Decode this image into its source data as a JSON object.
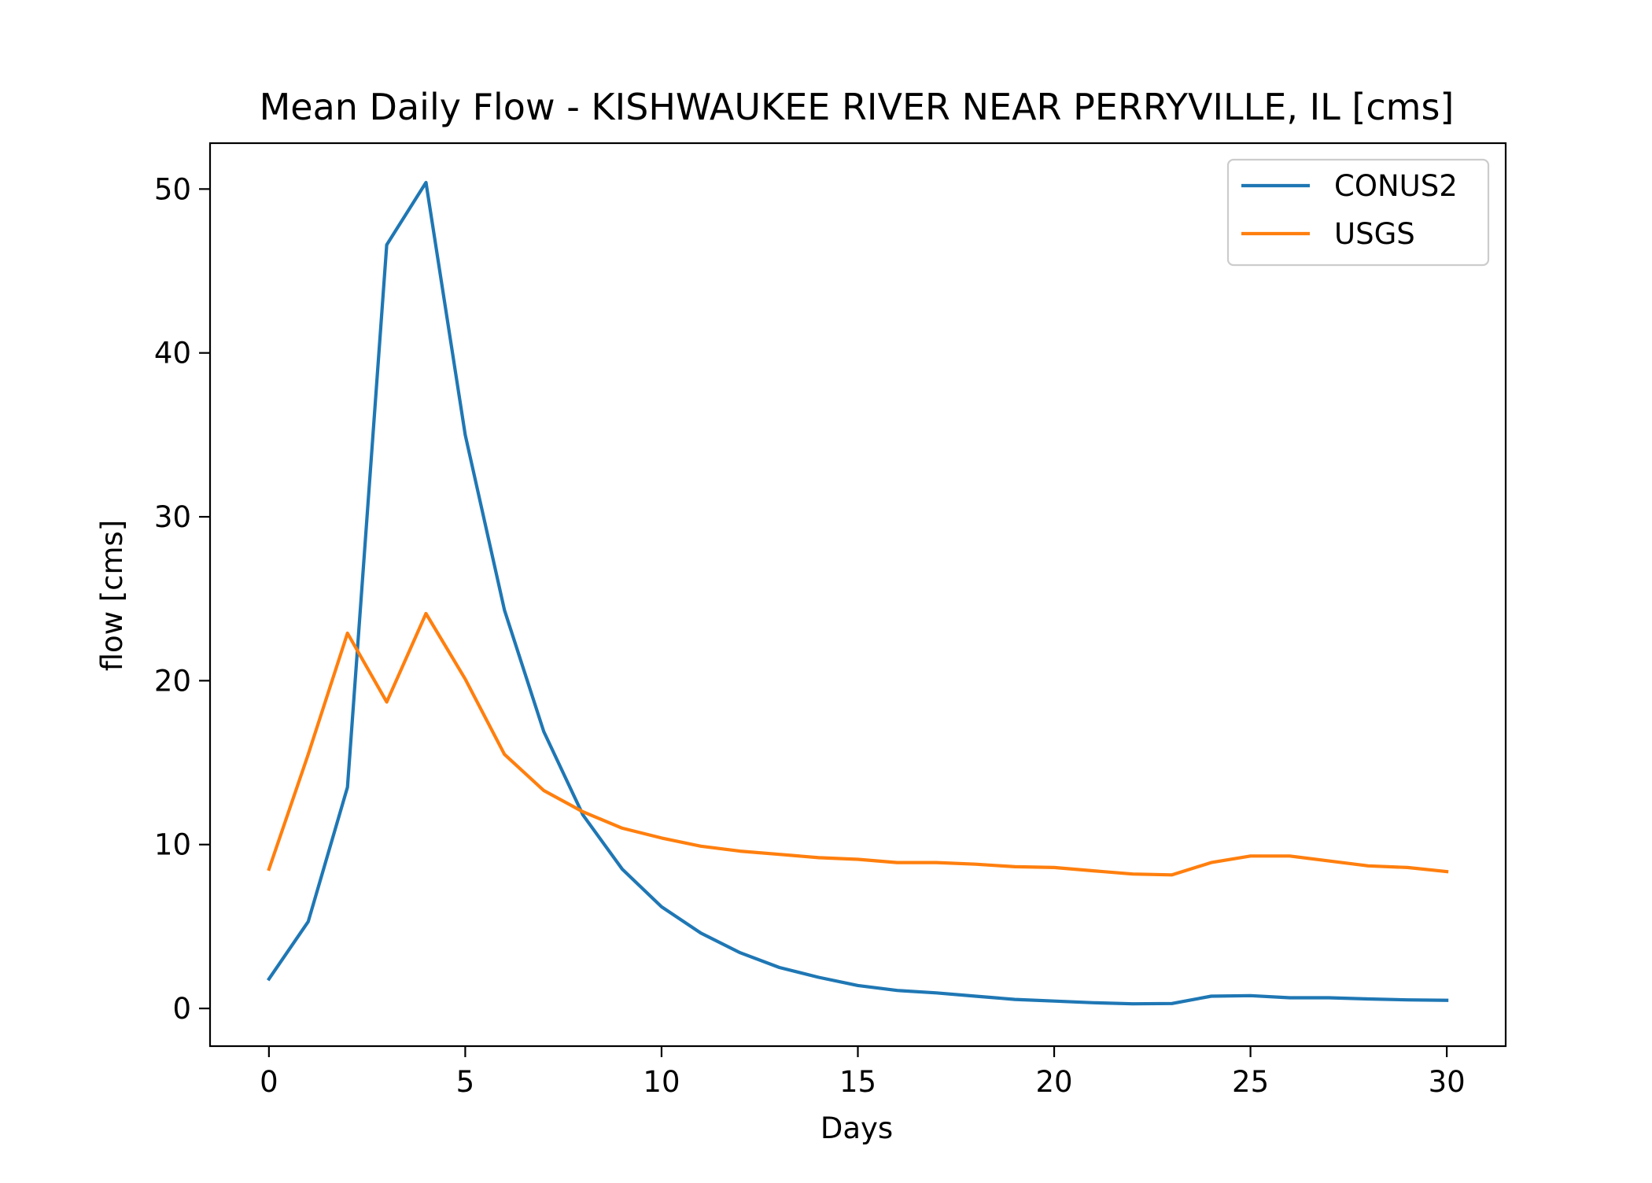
{
  "chart_data": {
    "type": "line",
    "title": "Mean Daily Flow - KISHWAUKEE RIVER NEAR PERRYVILLE, IL [cms]",
    "xlabel": "Days",
    "ylabel": "flow [cms]",
    "xlim": [
      -1.5,
      31.5
    ],
    "ylim": [
      -2.3,
      52.8
    ],
    "xticks": [
      0,
      5,
      10,
      15,
      20,
      25,
      30
    ],
    "yticks": [
      0,
      10,
      20,
      30,
      40,
      50
    ],
    "grid": false,
    "legend": "top-right",
    "x": [
      0,
      1,
      2,
      3,
      4,
      5,
      6,
      7,
      8,
      9,
      10,
      11,
      12,
      13,
      14,
      15,
      16,
      17,
      18,
      19,
      20,
      21,
      22,
      23,
      24,
      25,
      26,
      27,
      28,
      29,
      30
    ],
    "series": [
      {
        "name": "CONUS2",
        "color": "#1f77b4",
        "values": [
          1.8,
          5.3,
          13.5,
          46.6,
          50.4,
          35.0,
          24.3,
          16.9,
          11.8,
          8.5,
          6.2,
          4.6,
          3.4,
          2.5,
          1.9,
          1.4,
          1.1,
          0.95,
          0.75,
          0.55,
          0.45,
          0.35,
          0.28,
          0.3,
          0.75,
          0.78,
          0.65,
          0.65,
          0.58,
          0.52,
          0.5
        ]
      },
      {
        "name": "USGS",
        "color": "#ff7f0e",
        "values": [
          8.5,
          15.5,
          22.9,
          18.7,
          24.1,
          20.1,
          15.5,
          13.3,
          12.0,
          11.0,
          10.4,
          9.9,
          9.6,
          9.4,
          9.2,
          9.1,
          8.9,
          8.9,
          8.8,
          8.65,
          8.6,
          8.4,
          8.2,
          8.15,
          8.9,
          9.3,
          9.3,
          9.0,
          8.7,
          8.6,
          8.35
        ]
      }
    ]
  }
}
